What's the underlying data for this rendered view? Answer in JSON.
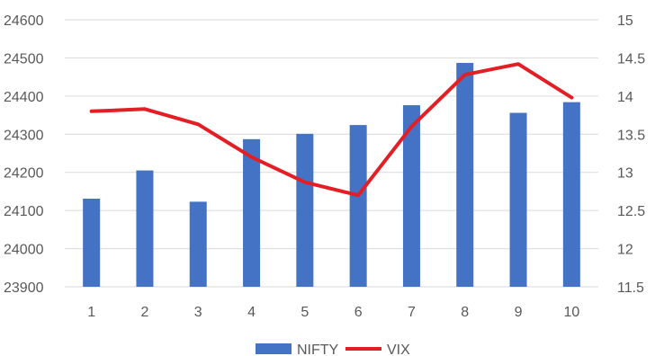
{
  "chart_data": {
    "type": "bar+line",
    "categories": [
      "1",
      "2",
      "3",
      "4",
      "5",
      "6",
      "7",
      "8",
      "9",
      "10"
    ],
    "series": [
      {
        "name": "NIFTY",
        "type": "bar",
        "axis": "left",
        "color": "#4472c4",
        "values": [
          24131,
          24205,
          24123,
          24287,
          24301,
          24324,
          24376,
          24487,
          24356,
          24384
        ]
      },
      {
        "name": "VIX",
        "type": "line",
        "axis": "right",
        "color": "#e31e24",
        "values": [
          13.8,
          13.83,
          13.63,
          13.2,
          12.87,
          12.7,
          13.6,
          14.28,
          14.42,
          13.98
        ]
      }
    ],
    "y_left": {
      "min": 23900,
      "max": 24600,
      "ticks": [
        "23900",
        "24000",
        "24100",
        "24200",
        "24300",
        "24400",
        "24500",
        "24600"
      ]
    },
    "y_right": {
      "min": 11.5,
      "max": 15,
      "ticks": [
        "11.5",
        "12",
        "12.5",
        "13",
        "13.5",
        "14",
        "14.5",
        "15"
      ]
    },
    "grid": true,
    "legend": {
      "position": "bottom",
      "entries": [
        "NIFTY",
        "VIX"
      ]
    }
  }
}
